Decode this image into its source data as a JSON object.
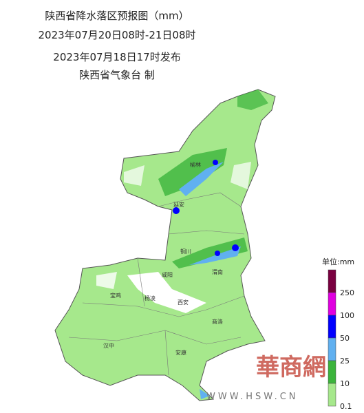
{
  "header": {
    "title": "陕西省降水落区预报图（mm）",
    "period": "2023年07月20日08时-21日08时",
    "issued": "2023年07月18日17时发布",
    "issuer": "陕西省气象台 制"
  },
  "cities": [
    "榆林",
    "延安",
    "铜川",
    "咸阳",
    "渭南",
    "宝鸡",
    "杨凌",
    "西安",
    "商洛",
    "汉中",
    "安康"
  ],
  "legend": {
    "title": "单位:mm",
    "levels": [
      {
        "label": 250,
        "color": "#7a0040"
      },
      {
        "label": 100,
        "color": "#e000e0"
      },
      {
        "label": 50,
        "color": "#0000ff"
      },
      {
        "label": 25,
        "color": "#60b0f0"
      },
      {
        "label": 10,
        "color": "#3cb43c"
      },
      {
        "label": 0.1,
        "color": "#a6e88c"
      }
    ]
  },
  "watermark": {
    "logo": "華商網",
    "url": "WWW.HSW.CN"
  }
}
